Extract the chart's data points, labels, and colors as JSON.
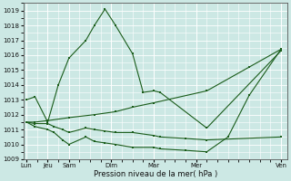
{
  "xlabel": "Pression niveau de la mer( hPa )",
  "background_color": "#cce8e4",
  "grid_color": "#ffffff",
  "line_color": "#1a5c1a",
  "ylim": [
    1009,
    1019.5
  ],
  "yticks": [
    1009,
    1010,
    1011,
    1012,
    1013,
    1014,
    1015,
    1016,
    1017,
    1018,
    1019
  ],
  "day_positions": [
    0,
    1,
    2,
    4,
    6,
    8,
    12
  ],
  "day_labels": [
    "Lun",
    "Jeu",
    "Sam",
    "Dim",
    "Mar",
    "Mer",
    "Ven"
  ],
  "xlim": [
    -0.15,
    12.3
  ],
  "s1_x": [
    0,
    0.4,
    1.0,
    1.5,
    2.0,
    2.8,
    3.2,
    3.7,
    4.2,
    5.0,
    5.5,
    6.0,
    6.3,
    8.5,
    12.0
  ],
  "s1_y": [
    1013.0,
    1013.2,
    1011.5,
    1014.0,
    1015.8,
    1017.0,
    1018.0,
    1019.1,
    1018.0,
    1016.1,
    1013.5,
    1013.6,
    1013.5,
    1011.1,
    1016.3
  ],
  "s2_x": [
    0,
    0.4,
    1.0,
    1.3,
    1.7,
    2.0,
    2.8,
    3.2,
    3.7,
    4.2,
    5.0,
    6.0,
    6.3,
    7.5,
    8.5,
    12.0
  ],
  "s2_y": [
    1011.5,
    1011.4,
    1011.4,
    1011.2,
    1011.0,
    1010.8,
    1011.1,
    1011.0,
    1010.9,
    1010.8,
    1010.8,
    1010.6,
    1010.5,
    1010.4,
    1010.3,
    1010.5
  ],
  "s3_x": [
    0,
    0.4,
    1.0,
    1.3,
    1.7,
    2.0,
    2.8,
    3.2,
    3.7,
    4.2,
    5.0,
    6.0,
    6.3,
    7.5,
    8.5,
    9.5,
    10.5,
    12.0
  ],
  "s3_y": [
    1011.5,
    1011.2,
    1011.0,
    1010.8,
    1010.3,
    1010.0,
    1010.5,
    1010.2,
    1010.1,
    1010.0,
    1009.8,
    1009.8,
    1009.7,
    1009.6,
    1009.5,
    1010.5,
    1013.3,
    1016.4
  ],
  "s4_x": [
    0,
    0.4,
    1.0,
    2.0,
    3.2,
    4.2,
    5.0,
    6.0,
    8.5,
    10.5,
    12.0
  ],
  "s4_y": [
    1011.5,
    1011.5,
    1011.6,
    1011.8,
    1012.0,
    1012.2,
    1012.5,
    1012.8,
    1013.6,
    1015.2,
    1016.4
  ]
}
